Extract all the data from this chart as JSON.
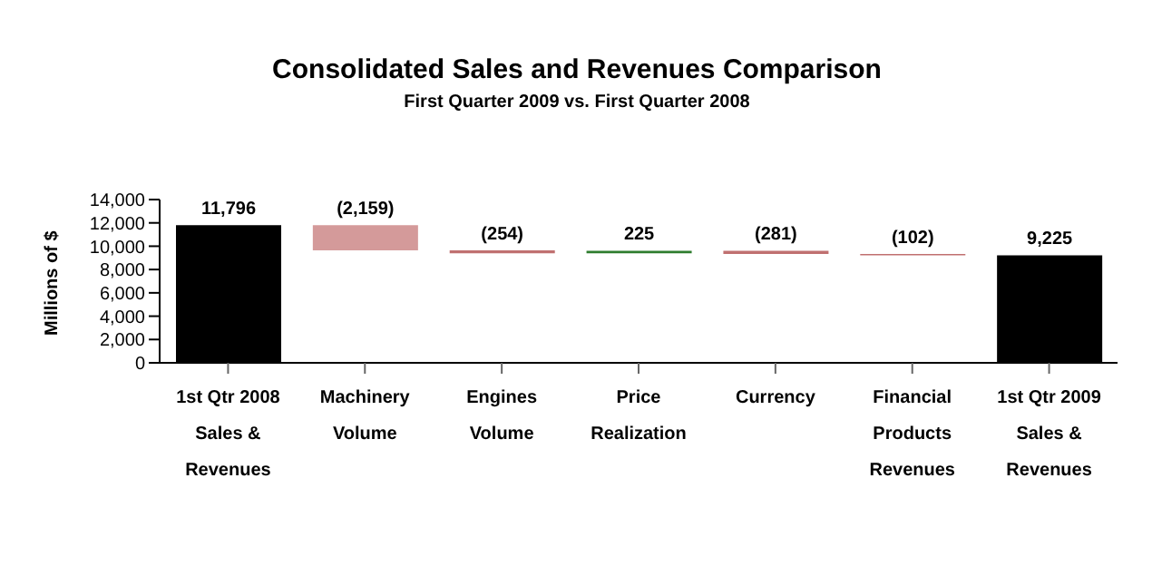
{
  "chart_data": {
    "type": "bar",
    "title": "Consolidated Sales and Revenues Comparison",
    "subtitle": "First Quarter 2009 vs. First Quarter 2008",
    "ylabel": "Millions of $",
    "categories": [
      "1st Qtr 2008 Sales & Revenues",
      "Machinery Volume",
      "Engines Volume",
      "Price Realization",
      "Currency",
      "Financial Products Revenues",
      "1st Qtr 2009 Sales & Revenues"
    ],
    "values": [
      11796,
      -2159,
      -254,
      225,
      -281,
      -102,
      9225
    ],
    "base": [
      0,
      11796,
      9637,
      9383,
      9608,
      9327,
      0
    ],
    "colors": [
      "#000000",
      "#d49a9a",
      "#c07070",
      "#2e7d2e",
      "#c07070",
      "#c07070",
      "#000000"
    ],
    "value_labels": [
      "11,796",
      "(2,159)",
      "(254)",
      "225",
      "(281)",
      "(102)",
      "9,225"
    ],
    "ylim": [
      0,
      14000
    ],
    "yticks": [
      0,
      {
        "value": 2000,
        "label": "2,000"
      },
      {
        "value": 4000,
        "label": "4,000"
      },
      {
        "value": 6000,
        "label": "6,000"
      },
      {
        "value": 8000,
        "label": "8,000"
      },
      {
        "value": 10000,
        "label": "10,000"
      },
      {
        "value": 12000,
        "label": "12,000"
      },
      {
        "value": 14000,
        "label": "14,000"
      }
    ],
    "grid": false,
    "legend": false
  }
}
